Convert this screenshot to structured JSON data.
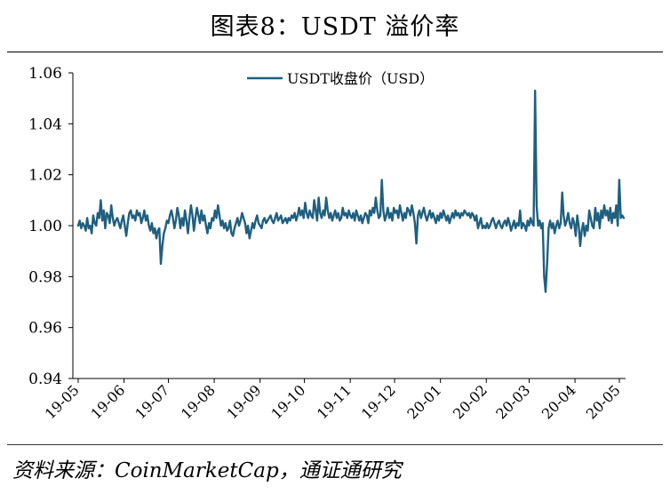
{
  "title": "图表8：USDT 溢价率",
  "source": "资料来源：CoinMarketCap，通证通研究",
  "chart_data": {
    "type": "line",
    "title": "图表8：USDT 溢价率",
    "xlabel": "",
    "ylabel": "",
    "ylim": [
      0.94,
      1.06
    ],
    "yticks": [
      "1.06",
      "1.04",
      "1.02",
      "1.00",
      "0.98",
      "0.96",
      "0.94"
    ],
    "xticks": [
      "19-05",
      "19-06",
      "19-07",
      "19-08",
      "19-09",
      "19-10",
      "19-11",
      "19-12",
      "20-01",
      "20-02",
      "20-03",
      "20-04",
      "20-05"
    ],
    "legend_position": "top-center",
    "grid": false,
    "series": [
      {
        "name": "USDT收盘价（USD）",
        "color": "#1f5f7f",
        "x_start": "2019-05-01",
        "x_end": "2020-05-04",
        "values": [
          1.0,
          1.002,
          0.999,
          1.001,
          1.0,
          0.998,
          1.003,
          0.999,
          1.0,
          0.997,
          1.004,
          1.001,
          1.0,
          1.005,
          1.003,
          1.01,
          1.002,
          1.006,
          0.999,
          1.005,
          1.004,
          1.001,
          1.008,
          1.003,
          1.0,
          1.002,
          1.003,
          1.001,
          0.999,
          1.002,
          1.004,
          1.0,
          0.996,
          1.001,
          1.005,
          1.006,
          1.003,
          1.004,
          1.002,
          1.006,
          1.004,
          1.005,
          1.001,
          1.003,
          1.006,
          1.002,
          1.004,
          1.0,
          0.998,
          1.001,
          0.997,
          0.999,
          0.995,
          0.998,
          0.999,
          0.985,
          0.992,
          0.997,
          0.999,
          1.002,
          1.001,
          1.004,
          1.006,
          1.003,
          0.999,
          1.002,
          1.007,
          1.004,
          0.999,
          1.003,
          1.0,
          1.006,
          1.002,
          0.997,
          1.003,
          1.008,
          1.004,
          0.998,
          1.003,
          1.007,
          1.004,
          1.001,
          1.006,
          1.002,
          1.004,
          1.0,
          0.997,
          1.001,
          0.999,
          1.003,
          1.002,
          1.006,
          1.003,
          1.008,
          1.004,
          1.0,
          1.002,
          0.999,
          1.001,
          0.998,
          0.999,
          1.002,
          0.997,
          0.996,
          0.999,
          1.001,
          1.003,
          1.0,
          1.002,
          1.005,
          1.003,
          1.001,
          0.997,
          1.0,
          0.995,
          0.998,
          1.001,
          0.999,
          1.002,
          1.004,
          1.001,
          1.0,
          0.999,
          1.002,
          1.003,
          1.001,
          1.002,
          1.003,
          1.004,
          1.002,
          1.001,
          1.003,
          1.005,
          1.002,
          1.003,
          1.004,
          1.001,
          1.002,
          1.003,
          1.001,
          1.003,
          1.002,
          1.004,
          1.003,
          1.005,
          1.002,
          1.004,
          1.007,
          1.004,
          1.006,
          1.003,
          1.009,
          1.005,
          1.003,
          1.006,
          1.004,
          1.003,
          1.01,
          1.006,
          1.002,
          1.011,
          1.005,
          1.003,
          1.006,
          1.004,
          1.011,
          1.006,
          1.003,
          1.005,
          1.002,
          1.004,
          1.006,
          1.003,
          1.005,
          1.002,
          1.003,
          1.007,
          1.004,
          1.005,
          1.003,
          1.006,
          1.004,
          1.003,
          1.005,
          1.002,
          1.006,
          1.004,
          1.002,
          1.004,
          1.001,
          1.003,
          1.005,
          1.004,
          1.001,
          1.006,
          1.004,
          1.007,
          1.005,
          1.011,
          1.006,
          1.003,
          1.004,
          1.018,
          1.006,
          1.002,
          1.004,
          1.007,
          1.003,
          1.005,
          1.002,
          1.007,
          1.005,
          1.006,
          1.003,
          1.008,
          1.005,
          1.002,
          1.005,
          1.003,
          1.007,
          1.006,
          1.004,
          1.008,
          1.005,
          1.001,
          0.993,
          1.004,
          1.006,
          1.003,
          1.005,
          1.007,
          1.004,
          1.002,
          1.004,
          1.006,
          1.003,
          1.005,
          1.003,
          1.001,
          1.004,
          1.002,
          1.005,
          1.003,
          1.006,
          1.004,
          1.002,
          1.004,
          1.001,
          1.003,
          1.005,
          1.003,
          1.006,
          1.004,
          1.005,
          1.003,
          1.005,
          1.004,
          1.006,
          1.005,
          1.004,
          1.005,
          1.003,
          1.005,
          1.004,
          1.002,
          1.004,
          0.999,
          1.001,
          1.003,
          0.999,
          1.0,
          0.999,
          1.001,
          0.999,
          1.0,
          1.002,
          1.003,
          1.001,
          0.999,
          1.001,
          1.002,
          1.0,
          0.999,
          1.001,
          1.002,
          1.0,
          1.003,
          1.001,
          0.998,
          1.0,
          1.002,
          0.999,
          1.001,
          1.0,
          1.006,
          0.999,
          1.001,
          1.0,
          0.998,
          1.002,
          1.0,
          1.003,
          1.001,
          1.0,
          1.053,
          1.008,
          1.0,
          1.002,
          0.999,
          1.001,
          0.98,
          0.974,
          0.985,
          0.999,
          1.002,
          0.999,
          1.001,
          0.997,
          1.0,
          1.002,
          0.999,
          1.001,
          1.013,
          1.004,
          1.0,
          1.002,
          1.005,
          1.001,
          0.999,
          1.003,
          1.001,
          0.996,
          1.004,
          1.0,
          0.992,
          0.998,
          1.001,
          0.996,
          1.0,
          0.998,
          1.006,
          1.003,
          1.0,
          0.999,
          1.007,
          1.002,
          1.005,
          0.999,
          1.006,
          1.003,
          1.008,
          1.004,
          1.006,
          1.002,
          1.007,
          1.001,
          1.005,
          1.003,
          1.008,
          1.0,
          1.018,
          1.003,
          1.004,
          1.003
        ]
      }
    ]
  }
}
